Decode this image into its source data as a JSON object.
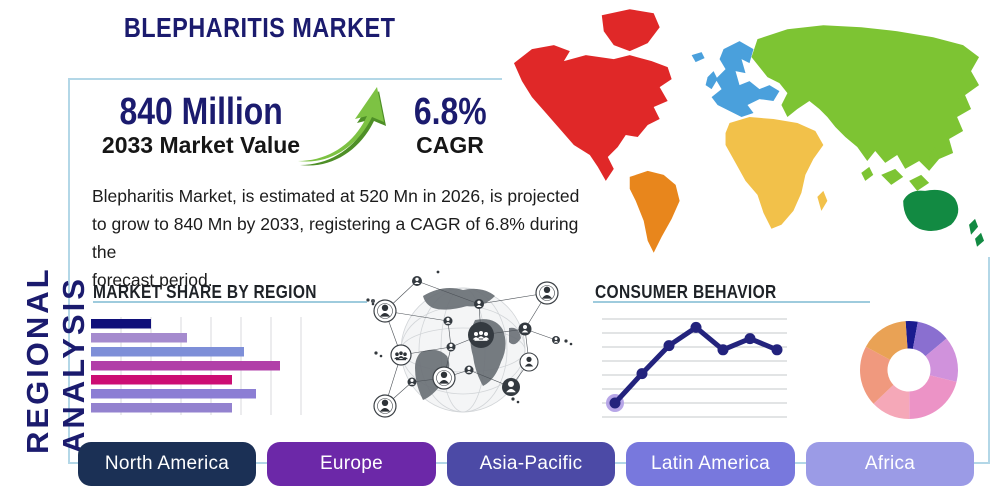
{
  "theme": {
    "navy": "#1b1b6e",
    "heading_dark": "#1e2227",
    "text_dark": "#1c1c1c",
    "panel_border": "#b3d7e7",
    "underline": "#9ecbdd",
    "arrow_green": "#7dc243",
    "arrow_green_dark": "#4e8f27"
  },
  "header": {
    "title": "BLEPHARITIS MARKET"
  },
  "sidebar": {
    "vertical_label": "REGIONAL ANALYSIS"
  },
  "stats": {
    "market_value": "840 Million",
    "market_value_label": "2033 Market Value",
    "cagr_value": "6.8%",
    "cagr_label": "CAGR"
  },
  "description": {
    "lines": [
      "Blepharitis Market, is estimated at 520 Mn in 2026, is projected",
      "to grow to 840 Mn by 2033, registering a CAGR of 6.8% during the",
      "forecast period."
    ]
  },
  "sections": {
    "market_share_title": "MARKET SHARE BY REGION",
    "consumer_behavior_title": "CONSUMER BEHAVIOR"
  },
  "chart_data": [
    {
      "type": "bar",
      "orientation": "horizontal",
      "title": "MARKET SHARE BY REGION",
      "values": [
        20,
        32,
        51,
        63,
        47,
        55,
        47
      ],
      "xlim": [
        0,
        70
      ],
      "gridline_step": 10,
      "bar_colors": [
        "#10107a",
        "#a58bce",
        "#7e8fd8",
        "#b13fa8",
        "#cc0d73",
        "#8c7ed4",
        "#9382cf"
      ],
      "categories_visible": false,
      "axis_labels_visible": false
    },
    {
      "type": "line",
      "title": "CONSUMER BEHAVIOR",
      "x": [
        1,
        2,
        3,
        4,
        5,
        6,
        7
      ],
      "values": [
        1.0,
        3.1,
        5.1,
        6.4,
        4.8,
        5.6,
        4.8
      ],
      "ylim": [
        0,
        7.5
      ],
      "gridlines": "horizontal",
      "line_color": "#23237d",
      "first_point_halo_color": "#b3a1e6",
      "axis_labels_visible": false
    },
    {
      "type": "pie",
      "donut": true,
      "values": [
        4,
        11,
        15,
        21,
        13,
        20,
        16
      ],
      "slice_colors": [
        "#1b1b8f",
        "#8a6fd0",
        "#d092dc",
        "#ec93c6",
        "#f5a8b8",
        "#f0997e",
        "#e9a255"
      ],
      "labels_visible": false,
      "start_angle_deg": -4
    }
  ],
  "map": {
    "colors": {
      "north_america": "#e02828",
      "south_america": "#e8861c",
      "europe": "#4aa0dc",
      "africa": "#f2c14a",
      "asia": "#7dc433",
      "oceania": "#128a42"
    }
  },
  "buttons": [
    {
      "label": "North America",
      "color": "#1b3055"
    },
    {
      "label": "Europe",
      "color": "#6c28a8"
    },
    {
      "label": "Asia-Pacific",
      "color": "#4c4aa6"
    },
    {
      "label": "Latin America",
      "color": "#7878dd"
    },
    {
      "label": "Africa",
      "color": "#9b9be6"
    }
  ]
}
